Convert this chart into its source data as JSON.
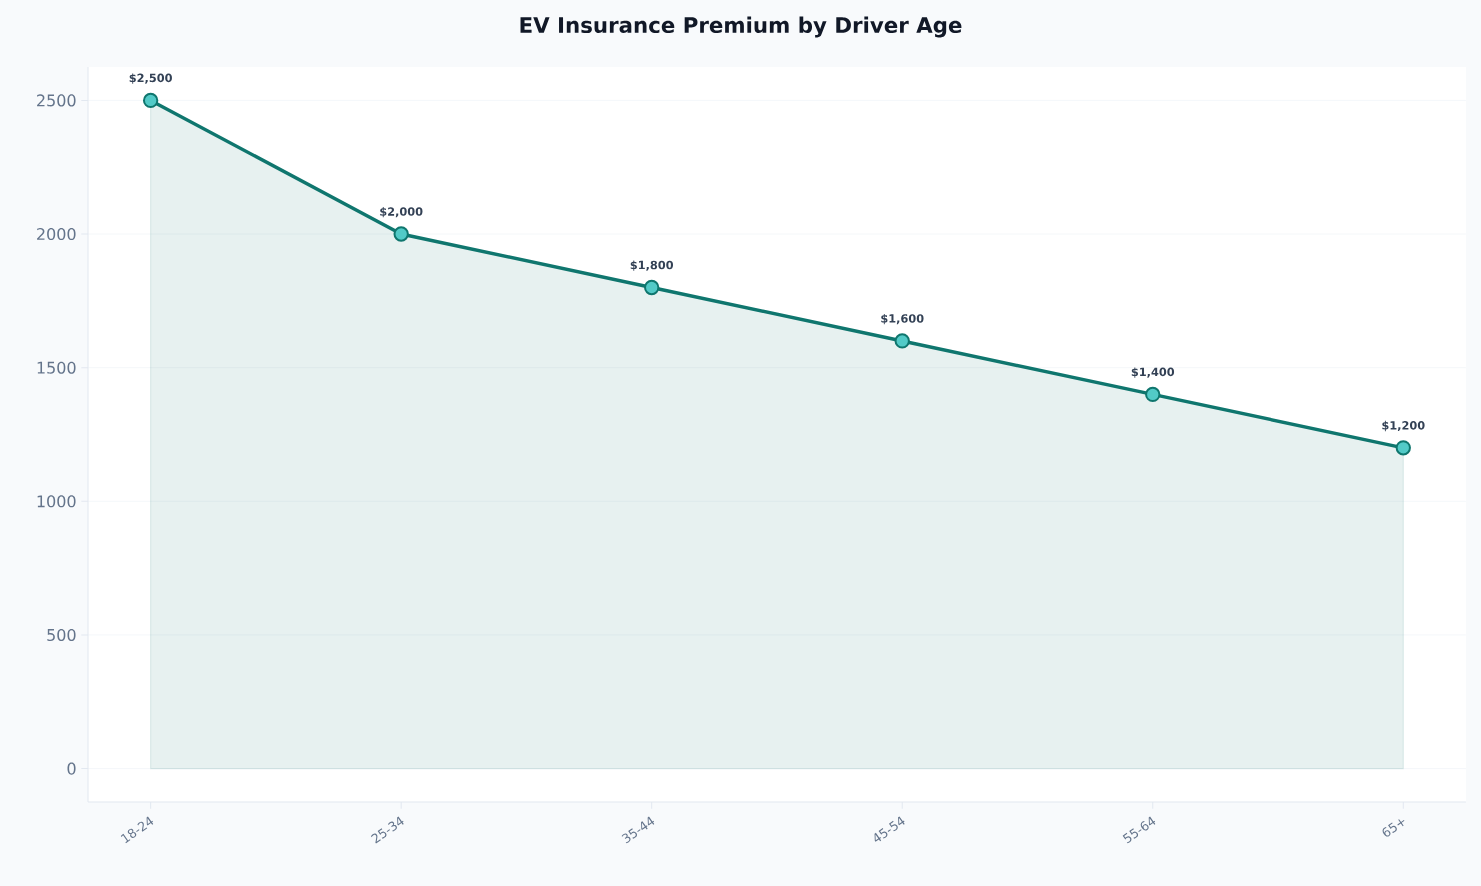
{
  "chart_data": {
    "type": "area",
    "title": "EV Insurance Premium by Driver Age",
    "categories": [
      "18-24",
      "25-34",
      "35-44",
      "45-54",
      "55-64",
      "65+"
    ],
    "series": [
      {
        "color": "#0f766e",
        "values": [
          2500,
          2000,
          1800,
          1600,
          1400,
          1200
        ],
        "value_labels": [
          "$2,500",
          "$2,000",
          "$1,800",
          "$1,600",
          "$1,400",
          "$1,200"
        ]
      }
    ],
    "ylim": [
      -125,
      2625
    ],
    "yticks": [
      0,
      500,
      1000,
      1500,
      2000,
      2500
    ],
    "grid": "y",
    "marker": "circle"
  }
}
